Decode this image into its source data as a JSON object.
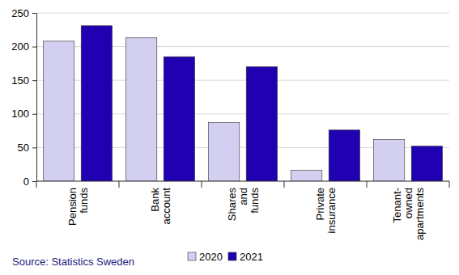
{
  "chart_data": {
    "type": "bar",
    "categories": [
      "Pension funds",
      "Bank account",
      "Shares and funds",
      "Private insurance",
      "Tenant-owned apartments"
    ],
    "series": [
      {
        "name": "2020",
        "color": "#d3cff0",
        "values": [
          208,
          213,
          87,
          16,
          62
        ]
      },
      {
        "name": "2021",
        "color": "#2000b0",
        "values": [
          231,
          185,
          170,
          76,
          52
        ]
      }
    ],
    "ylim": [
      0,
      250
    ],
    "yticks": [
      0,
      50,
      100,
      150,
      200,
      250
    ],
    "grid": true,
    "legend": "bottom",
    "source": "Source: Statistics Sweden"
  }
}
